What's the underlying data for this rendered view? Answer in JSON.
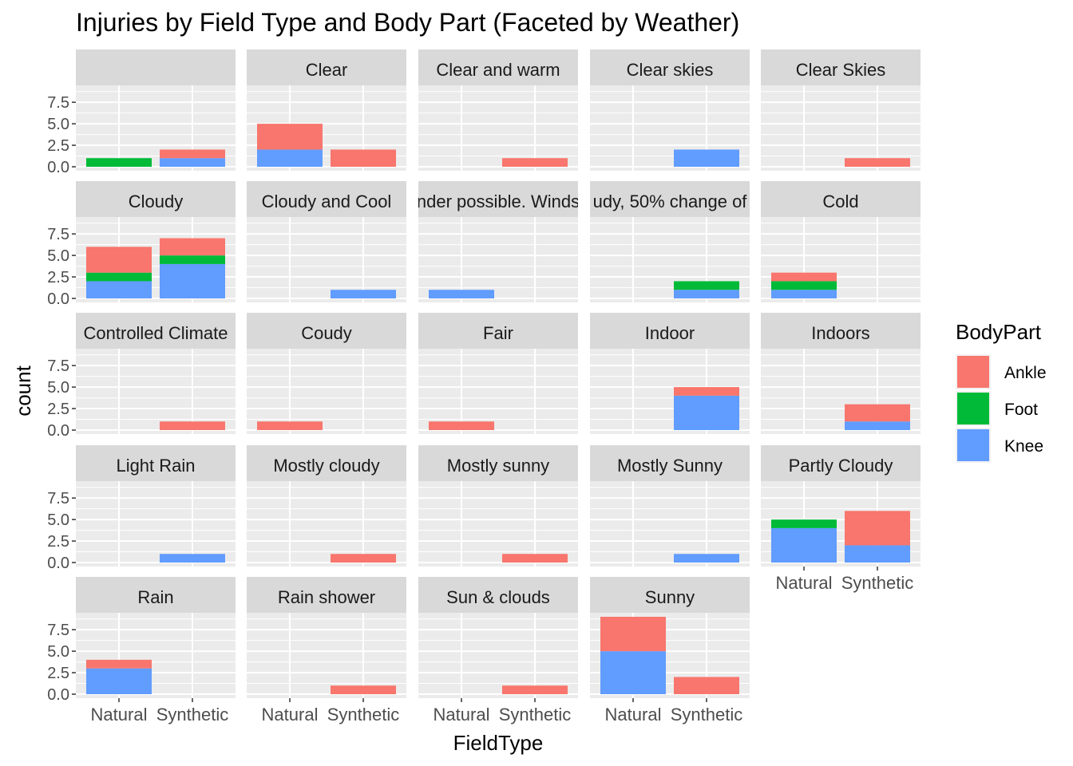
{
  "chart_data": {
    "type": "bar",
    "stacked": true,
    "title": "Injuries by Field Type and Body Part (Faceted by Weather)",
    "xlabel": "FieldType",
    "ylabel": "count",
    "categories": [
      "Natural",
      "Synthetic"
    ],
    "ylim": [
      0,
      9
    ],
    "yticks": [
      "0.0",
      "2.5",
      "5.0",
      "7.5"
    ],
    "ytick_values": [
      0,
      2.5,
      5,
      7.5
    ],
    "grid": true,
    "legend": {
      "title": "BodyPart",
      "placement": "right",
      "entries": [
        {
          "name": "Ankle",
          "color": "#F8766D"
        },
        {
          "name": "Foot",
          "color": "#00BA38"
        },
        {
          "name": "Knee",
          "color": "#619CFF"
        }
      ]
    },
    "stack_order": [
      "Knee",
      "Foot",
      "Ankle"
    ],
    "facets": [
      {
        "label": "",
        "Natural": {
          "Foot": 1
        },
        "Synthetic": {
          "Knee": 1,
          "Ankle": 1
        }
      },
      {
        "label": "Clear",
        "Natural": {
          "Knee": 2,
          "Ankle": 3
        },
        "Synthetic": {
          "Ankle": 2
        }
      },
      {
        "label": "Clear and warm",
        "Natural": {},
        "Synthetic": {
          "Ankle": 1
        }
      },
      {
        "label": "Clear skies",
        "Natural": {},
        "Synthetic": {
          "Knee": 2
        }
      },
      {
        "label": "Clear Skies",
        "Natural": {},
        "Synthetic": {
          "Ankle": 1
        }
      },
      {
        "label": "Cloudy",
        "Natural": {
          "Knee": 2,
          "Foot": 1,
          "Ankle": 3
        },
        "Synthetic": {
          "Knee": 4,
          "Foot": 1,
          "Ankle": 2
        }
      },
      {
        "label": "Cloudy and Cool",
        "Natural": {},
        "Synthetic": {
          "Knee": 1
        }
      },
      {
        "label": "nder possible. Winds",
        "Natural": {
          "Knee": 1
        },
        "Synthetic": {}
      },
      {
        "label": "udy, 50% change of",
        "Natural": {},
        "Synthetic": {
          "Knee": 1,
          "Foot": 1
        }
      },
      {
        "label": "Cold",
        "Natural": {
          "Knee": 1,
          "Foot": 1,
          "Ankle": 1
        },
        "Synthetic": {}
      },
      {
        "label": "Controlled Climate",
        "Natural": {},
        "Synthetic": {
          "Ankle": 1
        }
      },
      {
        "label": "Coudy",
        "Natural": {
          "Ankle": 1
        },
        "Synthetic": {}
      },
      {
        "label": "Fair",
        "Natural": {
          "Ankle": 1
        },
        "Synthetic": {}
      },
      {
        "label": "Indoor",
        "Natural": {},
        "Synthetic": {
          "Knee": 4,
          "Ankle": 1
        }
      },
      {
        "label": "Indoors",
        "Natural": {},
        "Synthetic": {
          "Knee": 1,
          "Ankle": 2
        }
      },
      {
        "label": "Light Rain",
        "Natural": {},
        "Synthetic": {
          "Knee": 1
        }
      },
      {
        "label": "Mostly cloudy",
        "Natural": {},
        "Synthetic": {
          "Ankle": 1
        }
      },
      {
        "label": "Mostly sunny",
        "Natural": {},
        "Synthetic": {
          "Ankle": 1
        }
      },
      {
        "label": "Mostly Sunny",
        "Natural": {},
        "Synthetic": {
          "Knee": 1
        }
      },
      {
        "label": "Partly Cloudy",
        "Natural": {
          "Knee": 4,
          "Foot": 1
        },
        "Synthetic": {
          "Knee": 2,
          "Ankle": 4
        }
      },
      {
        "label": "Rain",
        "Natural": {
          "Knee": 3,
          "Ankle": 1
        },
        "Synthetic": {}
      },
      {
        "label": "Rain shower",
        "Natural": {},
        "Synthetic": {
          "Ankle": 1
        }
      },
      {
        "label": "Sun & clouds",
        "Natural": {},
        "Synthetic": {
          "Ankle": 1
        }
      },
      {
        "label": "Sunny",
        "Natural": {
          "Knee": 5,
          "Ankle": 4
        },
        "Synthetic": {
          "Ankle": 2
        }
      }
    ]
  },
  "colors": {
    "panel_bg": "#EBEBEB",
    "strip_bg": "#D9D9D9",
    "grid": "#FFFFFF",
    "axis_text": "#4D4D4D"
  }
}
